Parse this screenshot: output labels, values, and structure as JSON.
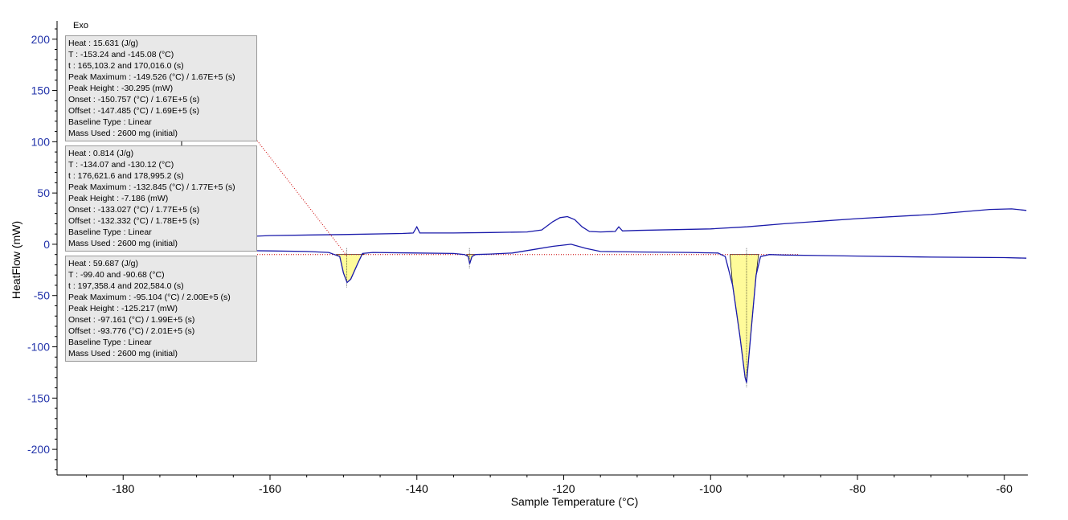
{
  "header": {
    "exo_label": "Exo"
  },
  "colors": {
    "curve": "#1a1aaa",
    "peak_fill": "#fffb9a",
    "baseline": "#cc0000",
    "axis_tick_label_y": "#2233aa"
  },
  "chart_data": {
    "type": "line",
    "xlabel": "Sample Temperature (°C)",
    "ylabel": "HeatFlow (mW)",
    "xlim": [
      -189,
      -56.8
    ],
    "ylim": [
      -225,
      210
    ],
    "x_ticks": [
      -180,
      -160,
      -140,
      -120,
      -100,
      -80,
      -60
    ],
    "y_ticks": [
      200,
      150,
      100,
      50,
      0,
      -50,
      -100,
      -150,
      -200
    ],
    "grid": false,
    "series": [
      {
        "points": [
          [
            -165,
            7
          ],
          [
            -160,
            8.5
          ],
          [
            -150,
            9.5
          ],
          [
            -142,
            10.5
          ],
          [
            -140.5,
            11
          ],
          [
            -140,
            17
          ],
          [
            -139.6,
            11
          ],
          [
            -135,
            11
          ],
          [
            -130,
            11.5
          ],
          [
            -125,
            12
          ],
          [
            -123,
            14
          ],
          [
            -121.5,
            22
          ],
          [
            -120.5,
            26
          ],
          [
            -119.5,
            27
          ],
          [
            -118.5,
            24
          ],
          [
            -117.5,
            17
          ],
          [
            -116.5,
            12.5
          ],
          [
            -115,
            12
          ],
          [
            -113,
            12.5
          ],
          [
            -112.5,
            17
          ],
          [
            -112,
            13
          ],
          [
            -110,
            13.5
          ],
          [
            -100,
            15
          ],
          [
            -95,
            17
          ],
          [
            -90,
            20
          ],
          [
            -80,
            25
          ],
          [
            -70,
            29
          ],
          [
            -62,
            34
          ],
          [
            -59,
            34.5
          ],
          [
            -57,
            33
          ]
        ]
      },
      {
        "points": [
          [
            -165,
            -6
          ],
          [
            -160,
            -6.5
          ],
          [
            -155,
            -7
          ],
          [
            -152,
            -8
          ],
          [
            -150.5,
            -12
          ],
          [
            -150,
            -28
          ],
          [
            -149.5,
            -37.3
          ],
          [
            -149,
            -34
          ],
          [
            -148,
            -18
          ],
          [
            -147.4,
            -9
          ],
          [
            -146,
            -8
          ],
          [
            -140,
            -8.5
          ],
          [
            -135,
            -9
          ],
          [
            -133.5,
            -10
          ],
          [
            -133,
            -12
          ],
          [
            -132.8,
            -19
          ],
          [
            -132.5,
            -12
          ],
          [
            -132,
            -10
          ],
          [
            -130,
            -9.5
          ],
          [
            -127,
            -8.5
          ],
          [
            -124,
            -5
          ],
          [
            -121.5,
            -2
          ],
          [
            -119,
            0
          ],
          [
            -117,
            -4
          ],
          [
            -115,
            -7
          ],
          [
            -110,
            -7.5
          ],
          [
            -103,
            -8
          ],
          [
            -99,
            -8.5
          ],
          [
            -98,
            -12
          ],
          [
            -97,
            -40
          ],
          [
            -96,
            -90
          ],
          [
            -95.3,
            -130
          ],
          [
            -95.1,
            -135
          ],
          [
            -94.8,
            -110
          ],
          [
            -94.3,
            -70
          ],
          [
            -93.8,
            -30
          ],
          [
            -93.2,
            -12
          ],
          [
            -92,
            -10
          ],
          [
            -90,
            -10.5
          ],
          [
            -80,
            -11.5
          ],
          [
            -70,
            -12.5
          ],
          [
            -60,
            -13
          ],
          [
            -57,
            -13.5
          ]
        ]
      }
    ],
    "baseline_y": -10,
    "peaks": [
      {
        "onset": -150.757,
        "offset": -147.485,
        "peak_x": -149.526,
        "peak_y": -37.3
      },
      {
        "onset": -133.027,
        "offset": -132.332,
        "peak_x": -132.845,
        "peak_y": -19
      },
      {
        "onset": -97.161,
        "offset": -93.776,
        "peak_x": -95.104,
        "peak_y": -135
      }
    ],
    "annotations": [
      {
        "lines": [
          "Heat :  15.631 (J/g)",
          "T : -153.24 and -145.08 (°C)",
          "t : 165,103.2 and 170,016.0 (s)",
          "Peak Maximum :  -149.526 (°C) / 1.67E+5 (s)",
          "Peak Height :  -30.295 (mW)",
          "Onset :  -150.757 (°C) / 1.67E+5 (s)",
          "Offset :  -147.485 (°C) / 1.69E+5 (s)",
          "Baseline Type :  Linear",
          "Mass Used :  2600 mg (initial)"
        ]
      },
      {
        "lines": [
          "Heat :  0.814 (J/g)",
          "T : -134.07 and -130.12 (°C)",
          "t : 176,621.6 and 178,995.2 (s)",
          "Peak Maximum :  -132.845 (°C) / 1.77E+5 (s)",
          "Peak Height :  -7.186 (mW)",
          "Onset :  -133.027 (°C) / 1.77E+5 (s)",
          "Offset :  -132.332 (°C) / 1.78E+5 (s)",
          "Baseline Type :  Linear",
          "Mass Used :  2600 mg (initial)"
        ]
      },
      {
        "lines": [
          "Heat :  59.687 (J/g)",
          "T : -99.40 and -90.68 (°C)",
          "t : 197,358.4 and 202,584.0 (s)",
          "Peak Maximum :  -95.104 (°C) / 2.00E+5 (s)",
          "Peak Height :  -125.217 (mW)",
          "Onset :  -97.161 (°C) / 1.99E+5 (s)",
          "Offset :  -93.776 (°C) / 2.01E+5 (s)",
          "Baseline Type :  Linear",
          "Mass Used :  2600 mg (initial)"
        ]
      }
    ]
  }
}
